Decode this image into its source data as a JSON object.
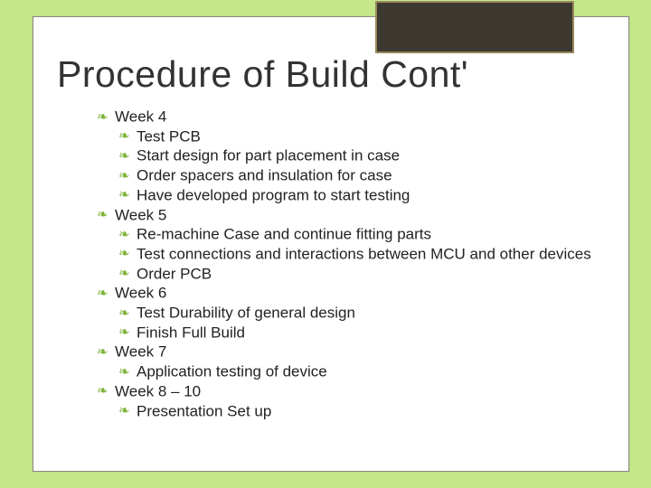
{
  "colors": {
    "background": "#c5e88a",
    "slide_bg": "#ffffff",
    "accent_fill": "#3d3830",
    "accent_border": "#9a8a5c",
    "bullet_color": "#7eb338",
    "text_color": "#222222",
    "title_color": "#333333"
  },
  "typography": {
    "title_fontsize": 41,
    "body_fontsize": 17,
    "font_family": "Arial"
  },
  "title": "Procedure of Build Cont'",
  "weeks": [
    {
      "label": "Week 4",
      "items": [
        "Test PCB",
        "Start design for part placement in case",
        "Order spacers and insulation for case",
        "Have developed program to start testing"
      ]
    },
    {
      "label": "Week 5",
      "items": [
        "Re-machine Case and continue fitting parts",
        "Test connections and interactions between MCU and other devices",
        "Order PCB"
      ]
    },
    {
      "label": "Week 6",
      "items": [
        "Test Durability of general design",
        "Finish Full Build"
      ]
    },
    {
      "label": "Week 7",
      "items": [
        "Application testing of device"
      ]
    },
    {
      "label": "Week 8 – 10",
      "items": [
        "Presentation Set up"
      ]
    }
  ]
}
